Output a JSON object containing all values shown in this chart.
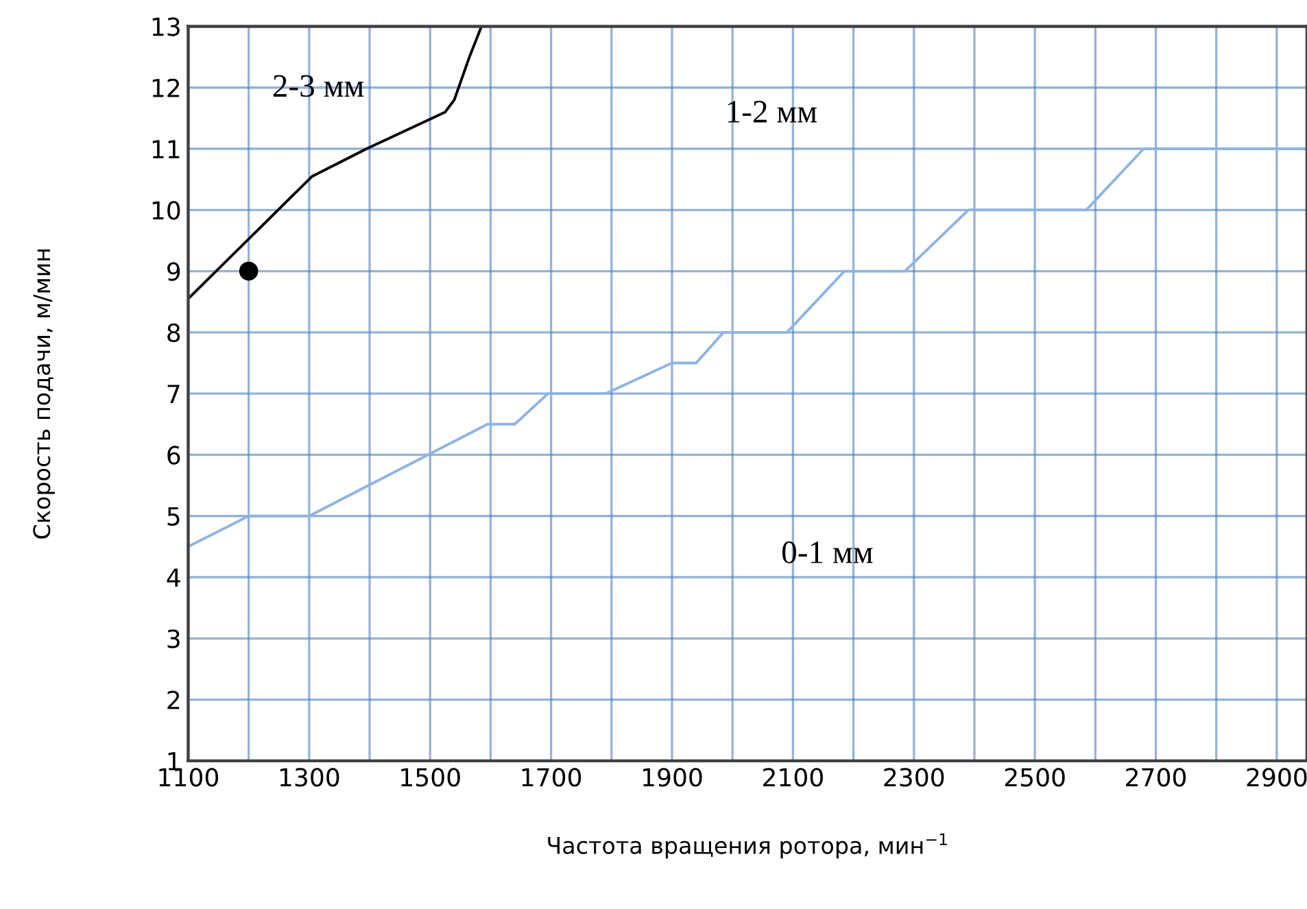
{
  "chart_data": {
    "type": "line",
    "xlabel": "Частота вращения ротора, мин$^{−1}$",
    "ylabel": "Скорость подачи, м/мин",
    "series": [
      {
        "color": "#8eb4e3",
        "x": [
          1100,
          1200,
          1300,
          1595,
          1640,
          1695,
          1790,
          1900,
          1940,
          1985,
          2090,
          2185,
          2285,
          2390,
          2585,
          2680,
          2950
        ],
        "values": [
          4.5,
          5,
          5,
          6.5,
          6.5,
          7,
          7,
          7.5,
          7.5,
          8,
          8,
          9,
          9,
          10,
          10,
          11,
          11
        ]
      },
      {
        "color": "#000000",
        "x": [
          1100,
          1305,
          1395,
          1525,
          1540,
          1565,
          1585
        ],
        "values": [
          8.55,
          10.55,
          11,
          11.6,
          11.8,
          12.5,
          13
        ]
      },
      {
        "type": "scatter",
        "color": "#000000",
        "marker": "circle",
        "x": [
          1200
        ],
        "values": [
          9
        ]
      }
    ],
    "annotations": [
      "2-3 мм",
      "1-2 мм",
      "0-1 мм"
    ],
    "xlim": [
      1100,
      2950
    ],
    "ylim": [
      1,
      13
    ],
    "xticks": [
      1100,
      {
        "value": 1200,
        "label": null
      },
      1300,
      {
        "value": 1400,
        "label": null
      },
      1500,
      {
        "value": 1600,
        "label": null
      },
      1700,
      {
        "value": 1800,
        "label": null
      },
      1900,
      {
        "value": 2000,
        "label": null
      },
      2100,
      {
        "value": 2200,
        "label": null
      },
      2300,
      {
        "value": 2400,
        "label": null
      },
      2500,
      {
        "value": 2600,
        "label": null
      },
      2700,
      {
        "value": 2800,
        "label": null
      },
      2900
    ],
    "yticks": [
      1,
      2,
      3,
      4,
      5,
      6,
      7,
      8,
      9,
      10,
      11,
      12,
      13
    ],
    "grid": true,
    "legend": false,
    "line_style": "solid"
  }
}
